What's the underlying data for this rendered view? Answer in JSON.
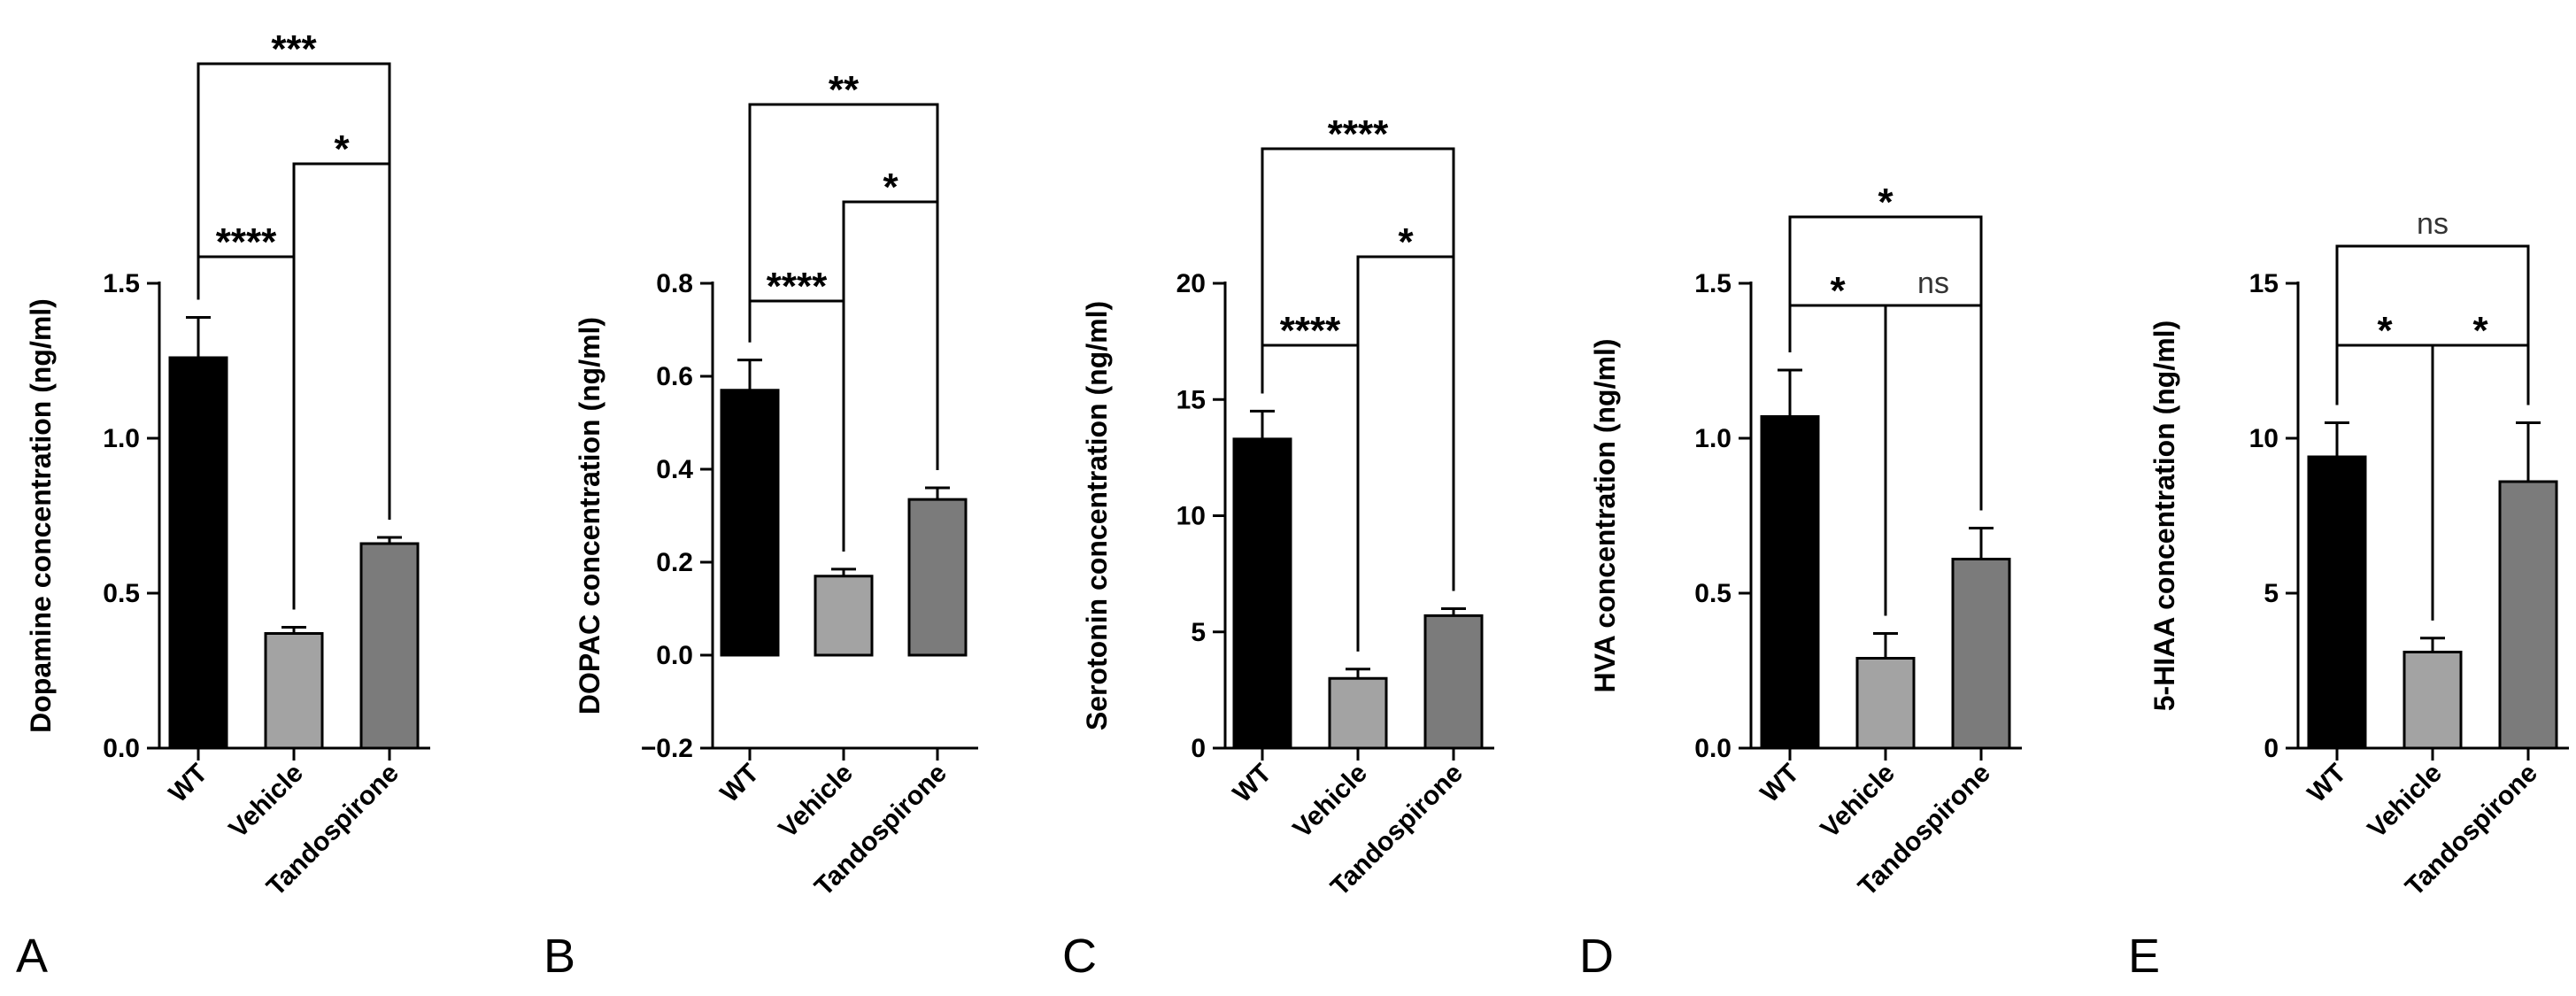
{
  "figure": {
    "colors": {
      "WT": "#000000",
      "Vehicle": "#a3a3a3",
      "Tandospirone": "#7b7b7b",
      "axis": "#000000"
    }
  },
  "chart_data": [
    {
      "panel": "A",
      "type": "bar",
      "categories": [
        "WT",
        "Vehicle",
        "Tandospirone"
      ],
      "values": [
        1.26,
        0.37,
        0.66
      ],
      "errors": [
        0.13,
        0.02,
        0.02
      ],
      "ylabel": "Dopamine concentration (ng/ml)",
      "ylim": [
        0,
        1.5
      ],
      "yticks": [
        0,
        0.5,
        1.0,
        1.5
      ],
      "ytick_labels": [
        "0.0",
        "0.5",
        "1.0",
        "1.5"
      ],
      "significance": [
        {
          "from": 0,
          "to": 1,
          "label": "****"
        },
        {
          "from": 1,
          "to": 2,
          "label": "*"
        },
        {
          "from": 0,
          "to": 2,
          "label": "***"
        }
      ]
    },
    {
      "panel": "B",
      "type": "bar",
      "categories": [
        "WT",
        "Vehicle",
        "Tandospirone"
      ],
      "values": [
        0.57,
        0.17,
        0.335
      ],
      "errors": [
        0.065,
        0.015,
        0.025
      ],
      "ylabel": "DOPAC concentration (ng/ml)",
      "ylim": [
        -0.2,
        0.8
      ],
      "yticks": [
        -0.2,
        0.0,
        0.2,
        0.4,
        0.6,
        0.8
      ],
      "ytick_labels": [
        "−0.2",
        "0.0",
        "0.2",
        "0.4",
        "0.6",
        "0.8"
      ],
      "significance": [
        {
          "from": 0,
          "to": 1,
          "label": "****"
        },
        {
          "from": 1,
          "to": 2,
          "label": "*"
        },
        {
          "from": 0,
          "to": 2,
          "label": "**"
        }
      ]
    },
    {
      "panel": "C",
      "type": "bar",
      "categories": [
        "WT",
        "Vehicle",
        "Tandospirone"
      ],
      "values": [
        13.3,
        3.0,
        5.7
      ],
      "errors": [
        1.2,
        0.4,
        0.3
      ],
      "ylabel": "Serotonin concentration (ng/ml)",
      "ylim": [
        0,
        20
      ],
      "yticks": [
        0,
        5,
        10,
        15,
        20
      ],
      "ytick_labels": [
        "0",
        "5",
        "10",
        "15",
        "20"
      ],
      "significance": [
        {
          "from": 0,
          "to": 1,
          "label": "****"
        },
        {
          "from": 1,
          "to": 2,
          "label": "*"
        },
        {
          "from": 0,
          "to": 2,
          "label": "****"
        }
      ]
    },
    {
      "panel": "D",
      "type": "bar",
      "categories": [
        "WT",
        "Vehicle",
        "Tandospirone"
      ],
      "values": [
        1.07,
        0.29,
        0.61
      ],
      "errors": [
        0.15,
        0.08,
        0.1
      ],
      "ylabel": "HVA concentration (ng/ml)",
      "ylim": [
        0,
        1.5
      ],
      "yticks": [
        0,
        0.5,
        1.0,
        1.5
      ],
      "ytick_labels": [
        "0.0",
        "0.5",
        "1.0",
        "1.5"
      ],
      "significance": [
        {
          "from": 0,
          "to": 1,
          "label": "*"
        },
        {
          "from": 1,
          "to": 2,
          "label": "ns"
        },
        {
          "from": 0,
          "to": 2,
          "label": "*"
        }
      ]
    },
    {
      "panel": "E",
      "type": "bar",
      "categories": [
        "WT",
        "Vehicle",
        "Tandospirone"
      ],
      "values": [
        9.4,
        3.1,
        8.6
      ],
      "errors": [
        1.1,
        0.45,
        1.9
      ],
      "ylabel": "5-HIAA concentration (ng/ml)",
      "ylim": [
        0,
        15
      ],
      "yticks": [
        0,
        5,
        10,
        15
      ],
      "ytick_labels": [
        "0",
        "5",
        "10",
        "15"
      ],
      "significance": [
        {
          "from": 0,
          "to": 1,
          "label": "*"
        },
        {
          "from": 1,
          "to": 2,
          "label": "*"
        },
        {
          "from": 0,
          "to": 2,
          "label": "ns"
        }
      ]
    }
  ]
}
